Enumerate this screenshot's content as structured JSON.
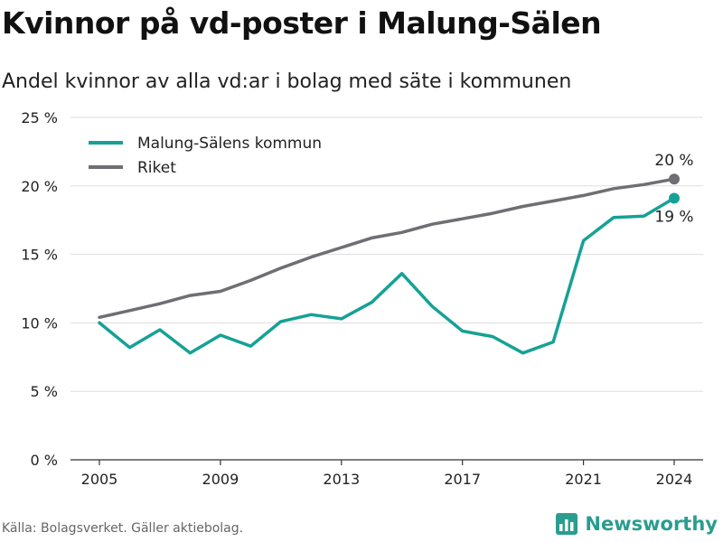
{
  "header": {
    "title": "Kvinnor på vd-poster i Malung-Sälen",
    "subtitle": "Andel kvinnor av alla vd:ar i bolag med säte i kommunen"
  },
  "footer": {
    "source": "Källa: Bolagsverket. Gäller aktiebolag.",
    "brand": "Newsworthy",
    "brand_icon": "bar-chart-logo-icon"
  },
  "colors": {
    "municipality": "#16a196",
    "nation": "#6f6e73",
    "grid": "#dddddd",
    "axis": "#333333",
    "brand": "#2a9d8f"
  },
  "chart_data": {
    "type": "line",
    "x": [
      2005,
      2006,
      2007,
      2008,
      2009,
      2010,
      2011,
      2012,
      2013,
      2014,
      2015,
      2016,
      2017,
      2018,
      2019,
      2020,
      2021,
      2022,
      2023,
      2024
    ],
    "series": [
      {
        "name": "Malung-Sälens kommun",
        "color": "#16a196",
        "values": [
          10.0,
          8.2,
          9.5,
          7.8,
          9.1,
          8.3,
          10.1,
          10.6,
          10.3,
          11.5,
          13.6,
          11.2,
          9.4,
          9.0,
          7.8,
          8.6,
          16.0,
          17.7,
          17.8,
          19.1
        ]
      },
      {
        "name": "Riket",
        "color": "#6f6e73",
        "values": [
          10.4,
          10.9,
          11.4,
          12.0,
          12.3,
          13.1,
          14.0,
          14.8,
          15.5,
          16.2,
          16.6,
          17.2,
          17.6,
          18.0,
          18.5,
          18.9,
          19.3,
          19.8,
          20.1,
          20.5
        ]
      }
    ],
    "xticks": [
      2005,
      2009,
      2013,
      2017,
      2021,
      2024
    ],
    "yticks": [
      {
        "value": 0,
        "label": "0 %"
      },
      {
        "value": 5,
        "label": "5 %"
      },
      {
        "value": 10,
        "label": "10 %"
      },
      {
        "value": 15,
        "label": "15 %"
      },
      {
        "value": 20,
        "label": "20 %"
      },
      {
        "value": 25,
        "label": "25 %"
      }
    ],
    "ylim": [
      0,
      25
    ],
    "xlim": [
      2005,
      2024
    ],
    "grid": true,
    "legend_position": "top-left",
    "end_labels": [
      {
        "series": "Riket",
        "label": "20 %",
        "placement": "above"
      },
      {
        "series": "Malung-Sälens kommun",
        "label": "19 %",
        "placement": "below"
      }
    ]
  }
}
